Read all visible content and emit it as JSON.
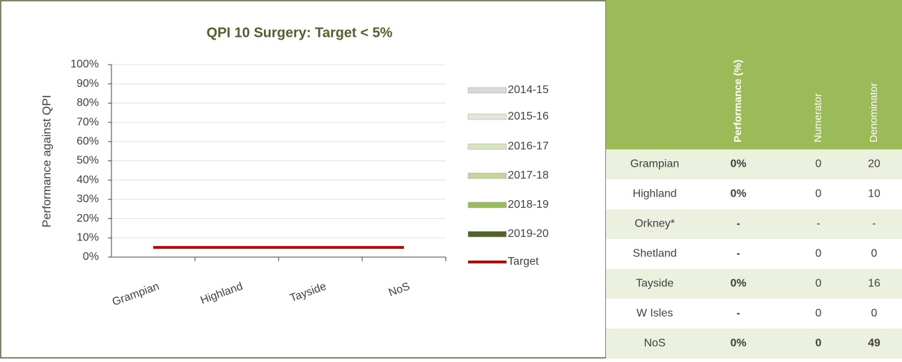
{
  "chart_data": {
    "type": "bar",
    "title": "QPI 10 Surgery: Target < 5%",
    "y_label": "Performance against QPI",
    "categories": [
      "Grampian",
      "Highland",
      "Tayside",
      "NoS"
    ],
    "series": [
      {
        "name": "2014-15",
        "color": "#d9d9d9",
        "values": [
          0,
          0,
          0,
          0
        ]
      },
      {
        "name": "2015-16",
        "color": "#e6e6d8",
        "values": [
          0,
          0,
          0,
          0
        ]
      },
      {
        "name": "2016-17",
        "color": "#d7e4bd",
        "values": [
          0,
          0,
          0,
          0
        ]
      },
      {
        "name": "2017-18",
        "color": "#c3d69b",
        "values": [
          0,
          0,
          0,
          0
        ]
      },
      {
        "name": "2018-19",
        "color": "#9bbb59",
        "values": [
          0,
          0,
          0,
          0
        ]
      },
      {
        "name": "2019-20",
        "color": "#4f6228",
        "values": [
          0,
          0,
          0,
          0
        ]
      }
    ],
    "target": {
      "name": "Target",
      "color": "#c00000",
      "values": [
        5,
        5,
        5,
        5
      ]
    },
    "ylim": [
      0,
      100
    ],
    "yticks": [
      {
        "value": 0,
        "label": "0%"
      },
      {
        "value": 10,
        "label": "10%"
      },
      {
        "value": 20,
        "label": "20%"
      },
      {
        "value": 30,
        "label": "30%"
      },
      {
        "value": 40,
        "label": "40%"
      },
      {
        "value": 50,
        "label": "50%"
      },
      {
        "value": 60,
        "label": "60%"
      },
      {
        "value": 70,
        "label": "70%"
      },
      {
        "value": 80,
        "label": "80%"
      },
      {
        "value": 90,
        "label": "90%"
      },
      {
        "value": 100,
        "label": "100%"
      }
    ],
    "grid": true,
    "legend": "right"
  },
  "table": {
    "columns": [
      "Performance (%)",
      "Numerator",
      "Denominator"
    ],
    "rows": [
      [
        "Grampian",
        "0%",
        "0",
        "20"
      ],
      [
        "Highland",
        "0%",
        "0",
        "10"
      ],
      [
        "Orkney*",
        "-",
        "-",
        "-"
      ],
      [
        "Shetland",
        "-",
        "0",
        "0"
      ],
      [
        "Tayside",
        "0%",
        "0",
        "16"
      ],
      [
        "W Isles",
        "-",
        "0",
        "0"
      ],
      [
        "NoS",
        "0%",
        "0",
        "49"
      ]
    ]
  }
}
